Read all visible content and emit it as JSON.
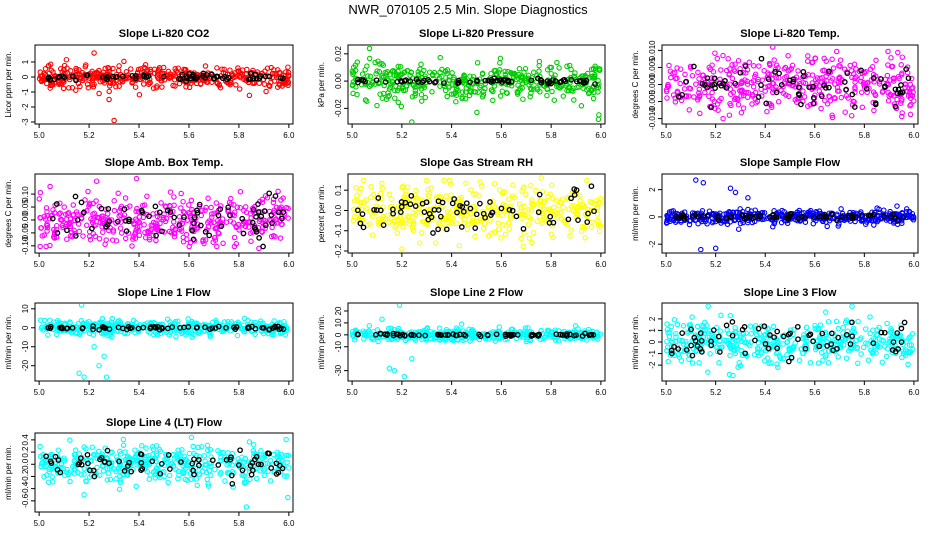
{
  "title": "NWR_070105  2.5 Min. Slope Diagnostics",
  "colors": {
    "red": "#ff0000",
    "green": "#00cc00",
    "magenta": "#ff00ff",
    "yellow": "#ffff00",
    "blue": "#0000ff",
    "cyan": "#00ffff",
    "black": "#000000"
  },
  "chart_data": [
    {
      "type": "scatter",
      "title": "Slope Li-820 CO2",
      "ylabel": "Licor ppm per min.",
      "xlim": [
        5.0,
        6.0
      ],
      "ylim": [
        -3,
        2
      ],
      "xticks": [
        "5.0",
        "5.2",
        "5.4",
        "5.6",
        "5.8",
        "6.0"
      ],
      "yticks": [
        {
          "v": -3,
          "t": "-3"
        },
        {
          "v": -2,
          "t": "-2"
        },
        {
          "v": -1,
          "t": "-1"
        },
        {
          "v": 0,
          "t": "0"
        },
        {
          "v": 1,
          "t": "1"
        }
      ],
      "color": "red",
      "spread": 0.35,
      "black_spread": 0.1,
      "outliers": [
        [
          5.22,
          1.6
        ],
        [
          5.3,
          -2.9
        ],
        [
          5.28,
          -1.5
        ],
        [
          5.24,
          -1.1
        ]
      ]
    },
    {
      "type": "scatter",
      "title": "Slope Li-820 Pressure",
      "ylabel": "kPa per min.",
      "xlim": [
        5.0,
        6.0
      ],
      "ylim": [
        -0.03,
        0.025
      ],
      "xticks": [
        "5.0",
        "5.2",
        "5.4",
        "5.6",
        "5.8",
        "6.0"
      ],
      "yticks": [
        {
          "v": -0.02,
          "t": "-0.02"
        },
        {
          "v": 0,
          "t": "0.00"
        },
        {
          "v": 0.02,
          "t": "0.02"
        }
      ],
      "color": "green",
      "spread": 0.007,
      "black_spread": 0.001,
      "outliers": [
        [
          5.07,
          0.024
        ],
        [
          5.24,
          -0.03
        ],
        [
          5.99,
          -0.028
        ],
        [
          5.1,
          -0.018
        ]
      ]
    },
    {
      "type": "scatter",
      "title": "Slope Li-820 Temp.",
      "ylabel": "degrees C per min.",
      "xlim": [
        5.0,
        6.0
      ],
      "ylim": [
        -0.011,
        0.011
      ],
      "xticks": [
        "5.0",
        "5.2",
        "5.4",
        "5.6",
        "5.8",
        "6.0"
      ],
      "yticks": [
        {
          "v": -0.01,
          "t": "-0.010"
        },
        {
          "v": -0.005,
          "t": "-0.005"
        },
        {
          "v": 0,
          "t": "0.000"
        },
        {
          "v": 0.005,
          "t": "0.005"
        },
        {
          "v": 0.01,
          "t": "0.010"
        }
      ],
      "color": "magenta",
      "spread": 0.004,
      "black_spread": 0.003,
      "outliers": [
        [
          5.43,
          0.011
        ],
        [
          5.23,
          -0.01
        ],
        [
          5.67,
          -0.009
        ]
      ]
    },
    {
      "type": "scatter",
      "title": "Slope Amb. Box Temp.",
      "ylabel": "degrees C per min.",
      "xlim": [
        5.0,
        6.0
      ],
      "ylim": [
        -0.12,
        0.17
      ],
      "xticks": [
        "5.0",
        "5.2",
        "5.4",
        "5.6",
        "5.8",
        "6.0"
      ],
      "yticks": [
        {
          "v": -0.1,
          "t": "-0.10"
        },
        {
          "v": -0.05,
          "t": "-0.05"
        },
        {
          "v": 0,
          "t": "0.00"
        },
        {
          "v": 0.05,
          "t": "0.05"
        },
        {
          "v": 0.1,
          "t": "0.10"
        }
      ],
      "color": "magenta",
      "spread": 0.05,
      "black_spread": 0.04,
      "outliers": [
        [
          5.39,
          0.16
        ],
        [
          5.88,
          -0.11
        ],
        [
          5.23,
          0.15
        ]
      ]
    },
    {
      "type": "scatter",
      "title": "Slope Gas Stream RH",
      "ylabel": "percent per min.",
      "xlim": [
        5.0,
        6.0
      ],
      "ylim": [
        -0.2,
        0.17
      ],
      "xticks": [
        "5.0",
        "5.2",
        "5.4",
        "5.6",
        "5.8",
        "6.0"
      ],
      "yticks": [
        {
          "v": -0.2,
          "t": "-0.2"
        },
        {
          "v": -0.1,
          "t": "-0.1"
        },
        {
          "v": 0,
          "t": "0.0"
        },
        {
          "v": 0.1,
          "t": "0.1"
        }
      ],
      "color": "yellow",
      "spread": 0.06,
      "black_spread": 0.05,
      "outliers": [
        [
          5.2,
          -0.19
        ],
        [
          5.76,
          0.16
        ]
      ]
    },
    {
      "type": "scatter",
      "title": "Slope Sample Flow",
      "ylabel": "ml/min per min.",
      "xlim": [
        5.0,
        6.0
      ],
      "ylim": [
        -2.5,
        3.0
      ],
      "xticks": [
        "5.0",
        "5.2",
        "5.4",
        "5.6",
        "5.8",
        "6.0"
      ],
      "yticks": [
        {
          "v": -2,
          "t": "-2"
        },
        {
          "v": 0,
          "t": "0"
        },
        {
          "v": 2,
          "t": "2"
        }
      ],
      "color": "blue",
      "spread": 0.25,
      "black_spread": 0.1,
      "outliers": [
        [
          5.12,
          2.7
        ],
        [
          5.15,
          2.5
        ],
        [
          5.28,
          1.8
        ],
        [
          5.26,
          2.1
        ],
        [
          5.14,
          -2.4
        ],
        [
          5.2,
          -2.3
        ],
        [
          5.33,
          1.4
        ]
      ]
    },
    {
      "type": "scatter",
      "title": "Slope Line 1 Flow",
      "ylabel": "ml/min per min.",
      "xlim": [
        5.0,
        6.0
      ],
      "ylim": [
        -27,
        12
      ],
      "xticks": [
        "5.0",
        "5.2",
        "5.4",
        "5.6",
        "5.8",
        "6.0"
      ],
      "yticks": [
        {
          "v": -20,
          "t": "-20"
        },
        {
          "v": -10,
          "t": "-10"
        },
        {
          "v": 0,
          "t": "0"
        },
        {
          "v": 10,
          "t": "10"
        }
      ],
      "color": "cyan",
      "spread": 2.0,
      "black_spread": 0.4,
      "outliers": [
        [
          5.16,
          -24
        ],
        [
          5.18,
          -26
        ],
        [
          5.24,
          -20
        ],
        [
          5.27,
          -26
        ],
        [
          5.26,
          -15
        ],
        [
          5.17,
          12
        ],
        [
          5.22,
          -10
        ]
      ]
    },
    {
      "type": "scatter",
      "title": "Slope Line 2 Flow",
      "ylabel": "ml/min per min.",
      "xlim": [
        5.0,
        6.0
      ],
      "ylim": [
        -37,
        25
      ],
      "xticks": [
        "5.0",
        "5.2",
        "5.4",
        "5.6",
        "5.8",
        "6.0"
      ],
      "yticks": [
        {
          "v": -30,
          "t": "-30"
        },
        {
          "v": -10,
          "t": "-10"
        },
        {
          "v": 0,
          "t": "0"
        },
        {
          "v": 10,
          "t": "10"
        },
        {
          "v": 20,
          "t": "20"
        }
      ],
      "color": "cyan",
      "spread": 2.5,
      "black_spread": 0.5,
      "outliers": [
        [
          5.15,
          -28
        ],
        [
          5.17,
          -30
        ],
        [
          5.21,
          -35
        ],
        [
          5.24,
          -20
        ],
        [
          5.19,
          25
        ],
        [
          5.12,
          13
        ],
        [
          5.44,
          9
        ]
      ]
    },
    {
      "type": "scatter",
      "title": "Slope Line 3 Flow",
      "ylabel": "ml/min per min.",
      "xlim": [
        5.0,
        6.0
      ],
      "ylim": [
        -3.2,
        3.2
      ],
      "xticks": [
        "5.0",
        "5.2",
        "5.4",
        "5.6",
        "5.8",
        "6.0"
      ],
      "yticks": [
        {
          "v": -2,
          "t": "-2"
        },
        {
          "v": -1,
          "t": "-1"
        },
        {
          "v": 0,
          "t": "0"
        },
        {
          "v": 1,
          "t": "1"
        },
        {
          "v": 2,
          "t": "2"
        }
      ],
      "color": "cyan",
      "spread": 0.9,
      "black_spread": 0.8,
      "outliers": [
        [
          5.17,
          3.1
        ],
        [
          5.75,
          3.1
        ],
        [
          5.27,
          -2.9
        ]
      ]
    },
    {
      "type": "scatter",
      "title": "Slope Line 4 (LT) Flow",
      "ylabel": "ml/min per min.",
      "xlim": [
        5.0,
        6.0
      ],
      "ylim": [
        -0.75,
        0.48
      ],
      "xticks": [
        "5.0",
        "5.2",
        "5.4",
        "5.6",
        "5.8",
        "6.0"
      ],
      "yticks": [
        {
          "v": -0.6,
          "t": "-0.6"
        },
        {
          "v": -0.4,
          "t": "-0.4"
        },
        {
          "v": -0.2,
          "t": "-0.2"
        },
        {
          "v": 0,
          "t": "0.0"
        },
        {
          "v": 0.2,
          "t": "0.2"
        },
        {
          "v": 0.4,
          "t": "0.4"
        }
      ],
      "color": "cyan",
      "spread": 0.15,
      "black_spread": 0.12,
      "outliers": [
        [
          5.61,
          0.44
        ],
        [
          5.83,
          -0.7
        ],
        [
          5.18,
          -0.5
        ]
      ]
    }
  ]
}
